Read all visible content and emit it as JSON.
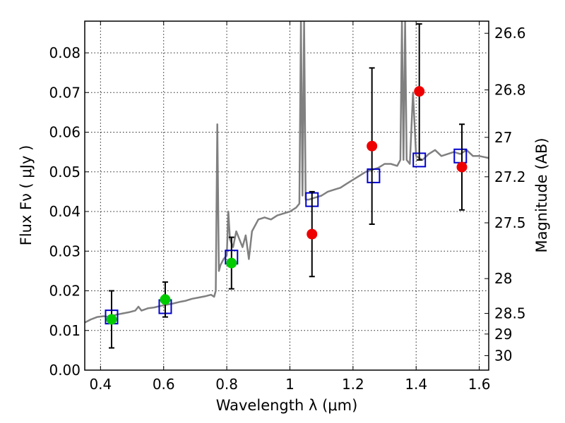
{
  "chart_data": {
    "type": "scatter",
    "title": "",
    "xlabel": "Wavelength  λ (μm)",
    "ylabel": "Flux  Fν  ( μJy )",
    "ylabel_right": "Magnitude (AB)",
    "xlim": [
      0.35,
      1.63
    ],
    "ylim": [
      0.0,
      0.088
    ],
    "grid": true,
    "x_ticks": [
      0.4,
      0.6,
      0.8,
      1.0,
      1.2,
      1.4,
      1.6
    ],
    "x_tick_labels": [
      "0.4",
      "0.6",
      "0.8",
      "1",
      "1.2",
      "1.4",
      "1.6"
    ],
    "y_ticks": [
      0.0,
      0.01,
      0.02,
      0.03,
      0.04,
      0.05,
      0.06,
      0.07,
      0.08
    ],
    "y_tick_labels": [
      "0.00",
      "0.01",
      "0.02",
      "0.03",
      "0.04",
      "0.05",
      "0.06",
      "0.07",
      "0.08"
    ],
    "right_ticks": [
      {
        "flux": 0.08494,
        "label": "26.6"
      },
      {
        "flux": 0.07066,
        "label": "26.8"
      },
      {
        "flux": 0.0587,
        "label": "27"
      },
      {
        "flux": 0.04875,
        "label": "27.2"
      },
      {
        "flux": 0.03715,
        "label": "27.5"
      },
      {
        "flux": 0.02308,
        "label": "28"
      },
      {
        "flux": 0.0143,
        "label": "28.5"
      },
      {
        "flux": 0.0091,
        "label": "29"
      },
      {
        "flux": 0.00365,
        "label": "30"
      }
    ],
    "series": [
      {
        "kind": "line",
        "color": "#808080",
        "x": [
          0.35,
          0.37,
          0.39,
          0.41,
          0.43,
          0.45,
          0.47,
          0.49,
          0.51,
          0.52,
          0.53,
          0.54,
          0.55,
          0.57,
          0.59,
          0.61,
          0.63,
          0.65,
          0.67,
          0.69,
          0.71,
          0.73,
          0.75,
          0.76,
          0.765,
          0.77,
          0.775,
          0.78,
          0.79,
          0.8,
          0.805,
          0.81,
          0.82,
          0.83,
          0.84,
          0.85,
          0.86,
          0.87,
          0.88,
          0.9,
          0.92,
          0.94,
          0.96,
          0.98,
          1.0,
          1.02,
          1.03,
          1.035,
          1.04,
          1.045,
          1.05,
          1.06,
          1.08,
          1.1,
          1.12,
          1.14,
          1.16,
          1.18,
          1.2,
          1.22,
          1.24,
          1.26,
          1.28,
          1.3,
          1.32,
          1.34,
          1.35,
          1.355,
          1.36,
          1.365,
          1.37,
          1.38,
          1.39,
          1.4,
          1.42,
          1.44,
          1.46,
          1.48,
          1.5,
          1.52,
          1.54,
          1.56,
          1.58,
          1.6,
          1.63
        ],
        "y": [
          0.012,
          0.0128,
          0.0134,
          0.0136,
          0.0134,
          0.014,
          0.0143,
          0.0146,
          0.015,
          0.016,
          0.015,
          0.0153,
          0.0156,
          0.0158,
          0.0162,
          0.0165,
          0.0168,
          0.0172,
          0.0175,
          0.018,
          0.0183,
          0.0186,
          0.019,
          0.0185,
          0.02,
          0.062,
          0.025,
          0.0265,
          0.028,
          0.029,
          0.04,
          0.033,
          0.031,
          0.035,
          0.033,
          0.031,
          0.034,
          0.028,
          0.035,
          0.038,
          0.0385,
          0.038,
          0.039,
          0.0395,
          0.04,
          0.041,
          0.042,
          0.088,
          0.044,
          0.088,
          0.043,
          0.043,
          0.0435,
          0.044,
          0.045,
          0.0455,
          0.046,
          0.047,
          0.048,
          0.049,
          0.05,
          0.0505,
          0.051,
          0.052,
          0.052,
          0.0515,
          0.053,
          0.088,
          0.053,
          0.088,
          0.053,
          0.052,
          0.07,
          0.054,
          0.053,
          0.0545,
          0.0555,
          0.054,
          0.0545,
          0.055,
          0.0545,
          0.0555,
          0.054,
          0.054,
          0.0535
        ]
      },
      {
        "kind": "markers",
        "marker": "square-open",
        "color": "#0000cc",
        "x": [
          0.435,
          0.605,
          0.815,
          1.07,
          1.265,
          1.41,
          1.54
        ],
        "y": [
          0.0134,
          0.016,
          0.0285,
          0.043,
          0.049,
          0.053,
          0.054
        ]
      },
      {
        "kind": "markers",
        "marker": "circle",
        "color": "#00cc00",
        "x": [
          0.435,
          0.605,
          0.815
        ],
        "y": [
          0.0128,
          0.0178,
          0.027
        ],
        "yerr_low": [
          0.0056,
          0.0134,
          0.0205
        ],
        "yerr_high": [
          0.02,
          0.0222,
          0.0335
        ]
      },
      {
        "kind": "markers",
        "marker": "circle",
        "color": "#ee0000",
        "x": [
          1.07,
          1.26,
          1.41,
          1.545
        ],
        "y": [
          0.0343,
          0.0565,
          0.0703,
          0.0512
        ],
        "yerr_low": [
          0.0236,
          0.0368,
          0.053,
          0.0404
        ],
        "yerr_high": [
          0.045,
          0.0762,
          0.0873,
          0.062
        ]
      }
    ]
  }
}
